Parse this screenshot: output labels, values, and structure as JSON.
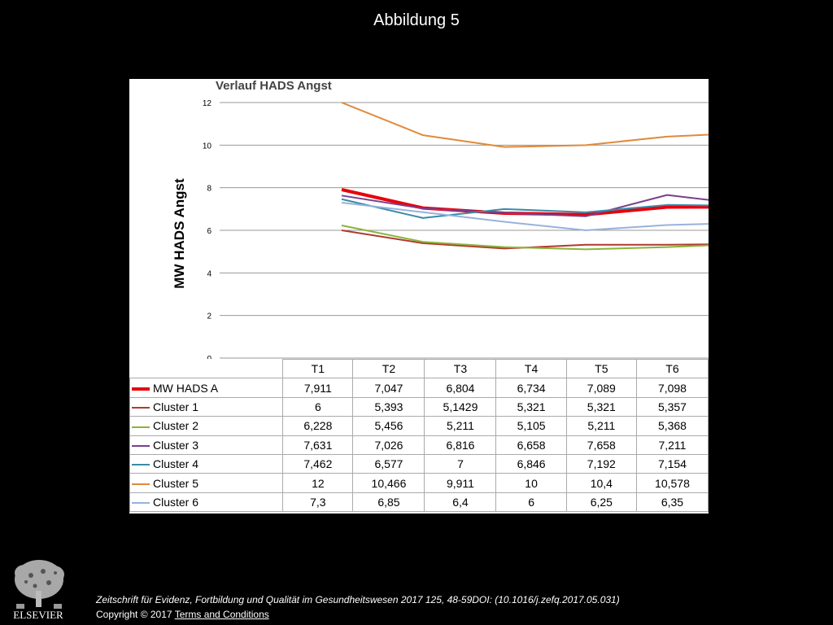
{
  "slide": {
    "title": "Abbildung 5"
  },
  "footer": {
    "citation": "Zeitschrift für Evidenz, Fortbildung und Qualität im Gesundheitswesen 2017 125, 48-59DOI: (10.1016/j.zefq.2017.05.031)",
    "copyright": "Copyright © 2017",
    "terms_link": " Terms and Conditions",
    "logo_text": "ELSEVIER"
  },
  "chart_data": {
    "type": "line",
    "title": "Verlauf HADS Angst",
    "xlabel": "",
    "ylabel": "MW HADS Angst",
    "ylim": [
      0,
      12
    ],
    "yticks": [
      0,
      2,
      4,
      6,
      8,
      10,
      12
    ],
    "grid": true,
    "legend": "table-below",
    "categories": [
      "T1",
      "T2",
      "T3",
      "T4",
      "T5",
      "T6"
    ],
    "series": [
      {
        "name": "MW HADS A",
        "color": "#e8000b",
        "width": 4,
        "values": [
          7.911,
          7.047,
          6.804,
          6.734,
          7.089,
          7.098
        ],
        "labels": [
          "7,911",
          "7,047",
          "6,804",
          "6,734",
          "7,089",
          "7,098"
        ]
      },
      {
        "name": "Cluster 1",
        "color": "#b03a2e",
        "width": 2,
        "values": [
          6,
          5.393,
          5.1429,
          5.321,
          5.321,
          5.357
        ],
        "labels": [
          "6",
          "5,393",
          "5,1429",
          "5,321",
          "5,321",
          "5,357"
        ]
      },
      {
        "name": "Cluster 2",
        "color": "#8cb33a",
        "width": 2,
        "values": [
          6.228,
          5.456,
          5.211,
          5.105,
          5.211,
          5.368
        ],
        "labels": [
          "6,228",
          "5,456",
          "5,211",
          "5,105",
          "5,211",
          "5,368"
        ]
      },
      {
        "name": "Cluster 3",
        "color": "#7a3f8f",
        "width": 2,
        "values": [
          7.631,
          7.026,
          6.816,
          6.658,
          7.658,
          7.211
        ],
        "labels": [
          "7,631",
          "7,026",
          "6,816",
          "6,658",
          "7,658",
          "7,211"
        ]
      },
      {
        "name": "Cluster 4",
        "color": "#3a8ba8",
        "width": 2,
        "values": [
          7.462,
          6.577,
          7,
          6.846,
          7.192,
          7.154
        ],
        "labels": [
          "7,462",
          "6,577",
          "7",
          "6,846",
          "7,192",
          "7,154"
        ]
      },
      {
        "name": "Cluster 5",
        "color": "#e08a3c",
        "width": 2,
        "values": [
          12,
          10.466,
          9.911,
          10,
          10.4,
          10.578
        ],
        "labels": [
          "12",
          "10,466",
          "9,911",
          "10",
          "10,4",
          "10,578"
        ]
      },
      {
        "name": "Cluster 6",
        "color": "#98b2dc",
        "width": 2,
        "values": [
          7.3,
          6.85,
          6.4,
          6,
          6.25,
          6.35
        ],
        "labels": [
          "7,3",
          "6,85",
          "6,4",
          "6",
          "6,25",
          "6,35"
        ]
      }
    ]
  }
}
